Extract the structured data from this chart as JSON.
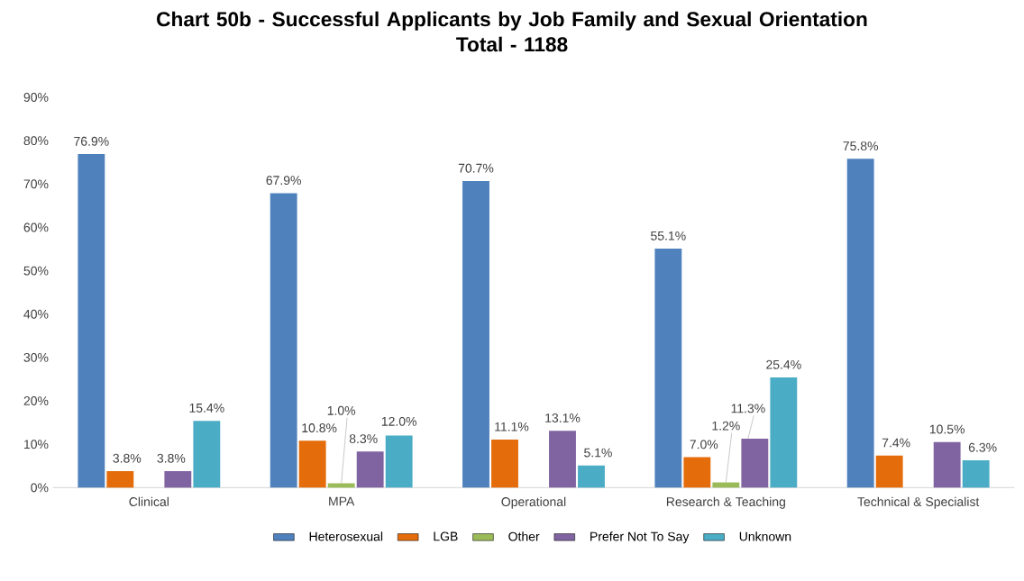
{
  "chart_data": {
    "type": "bar",
    "title": "Chart 50b - Successful Applicants by Job Family and Sexual Orientation",
    "subtitle": "Total - 1188",
    "categories": [
      "Clinical",
      "MPA",
      "Operational",
      "Research & Teaching",
      "Technical & Specialist"
    ],
    "series": [
      {
        "name": "Heterosexual",
        "color": "#4f81bd",
        "values": [
          76.9,
          67.9,
          70.7,
          55.1,
          75.8
        ],
        "value_labels": [
          "76.9%",
          "67.9%",
          "70.7%",
          "55.1%",
          "75.8%"
        ]
      },
      {
        "name": "LGB",
        "color": "#e46c0a",
        "values": [
          3.8,
          10.8,
          11.1,
          7.0,
          7.4
        ],
        "value_labels": [
          "3.8%",
          "10.8%",
          "11.1%",
          "7.0%",
          "7.4%"
        ]
      },
      {
        "name": "Other",
        "color": "#9bbb59",
        "values": [
          null,
          1.0,
          null,
          1.2,
          null
        ],
        "value_labels": [
          null,
          "1.0%",
          null,
          "1.2%",
          null
        ]
      },
      {
        "name": "Prefer Not To Say",
        "color": "#8064a2",
        "values": [
          3.8,
          8.3,
          13.1,
          11.3,
          10.5
        ],
        "value_labels": [
          "3.8%",
          "8.3%",
          "13.1%",
          "11.3%",
          "10.5%"
        ]
      },
      {
        "name": "Unknown",
        "color": "#4bacc6",
        "values": [
          15.4,
          12.0,
          5.1,
          25.4,
          6.3
        ],
        "value_labels": [
          "15.4%",
          "12.0%",
          "5.1%",
          "25.4%",
          "6.3%"
        ]
      }
    ],
    "ylim": [
      0,
      90
    ],
    "yticks": [
      {
        "value": 0,
        "label": "0%"
      },
      {
        "value": 10,
        "label": "10%"
      },
      {
        "value": 20,
        "label": "20%"
      },
      {
        "value": 30,
        "label": "30%"
      },
      {
        "value": 40,
        "label": "40%"
      },
      {
        "value": 50,
        "label": "50%"
      },
      {
        "value": 60,
        "label": "60%"
      },
      {
        "value": 70,
        "label": "70%"
      },
      {
        "value": 80,
        "label": "80%"
      },
      {
        "value": 90,
        "label": "90%"
      }
    ],
    "grid": false,
    "legend": "bottom"
  }
}
